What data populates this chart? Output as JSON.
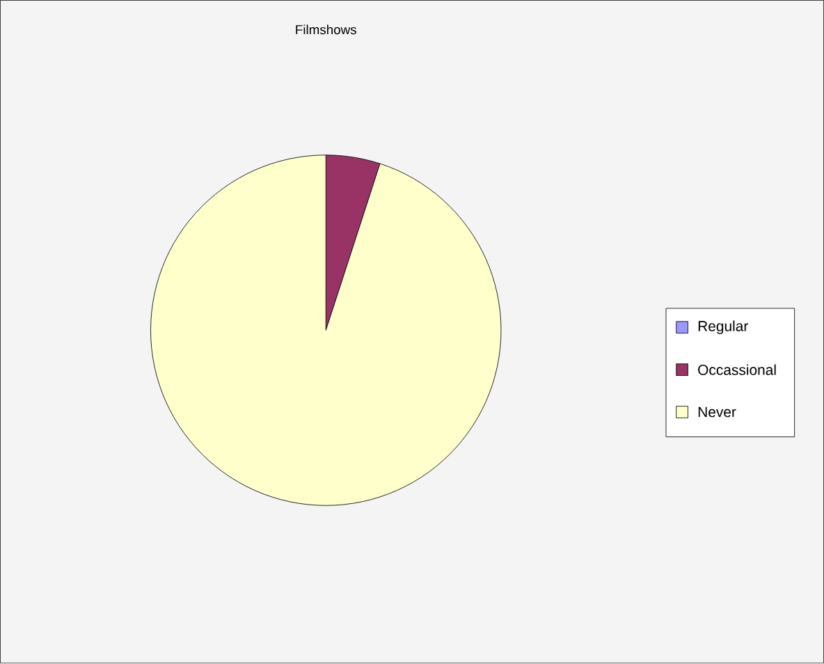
{
  "chart_data": {
    "type": "pie",
    "title": "Filmshows",
    "categories": [
      "Regular",
      "Occassional",
      "Never"
    ],
    "values": [
      0,
      5,
      95
    ],
    "colors": [
      "#9999ff",
      "#993366",
      "#ffffcc"
    ],
    "legend": "right"
  }
}
